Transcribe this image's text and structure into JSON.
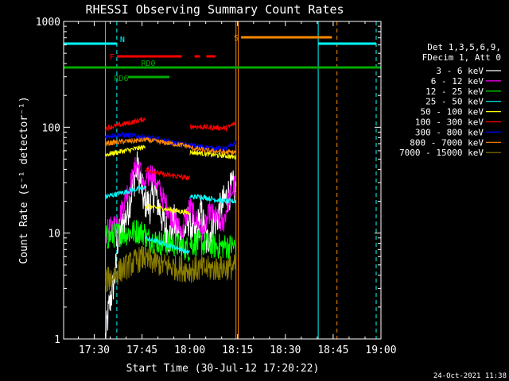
{
  "chart_data": {
    "type": "line",
    "title": "RHESSI Observing Summary Count Rates",
    "xlabel": "Start Time (30-Jul-12 17:20:22)",
    "ylabel": "Count Rate (s⁻¹ detector⁻¹)",
    "yscale": "log",
    "ylim": [
      1,
      1000
    ],
    "xlim_minutes": [
      1040.4,
      1140
    ],
    "x_ticks": [
      {
        "label": "17:30",
        "minute": 1050
      },
      {
        "label": "17:45",
        "minute": 1065
      },
      {
        "label": "18:00",
        "minute": 1080
      },
      {
        "label": "18:15",
        "minute": 1095
      },
      {
        "label": "18:30",
        "minute": 1110
      },
      {
        "label": "18:45",
        "minute": 1125
      },
      {
        "label": "19:00",
        "minute": 1140
      }
    ],
    "y_ticks": [
      {
        "label": "1",
        "value": 1
      },
      {
        "label": "10",
        "value": 10
      },
      {
        "label": "100",
        "value": 100
      },
      {
        "label": "1000",
        "value": 1000
      }
    ],
    "legend_header": [
      "Det 1,3,5,6,9,",
      "FDecim 1, Att 0"
    ],
    "legend_position": "top-right",
    "series": [
      {
        "name": "3 - 6 keV",
        "color": "#ffffff",
        "segments": [
          {
            "start": 1053.5,
            "end": 1057.0,
            "values": [
              1,
              2,
              3,
              5
            ]
          },
          {
            "start": 1057.0,
            "end": 1066.0,
            "values": [
              8,
              10,
              13,
              18,
              28,
              42,
              30,
              16
            ]
          },
          {
            "start": 1066.0,
            "end": 1078.0,
            "values": [
              20,
              18,
              25,
              17,
              12,
              9,
              13,
              10,
              8
            ]
          },
          {
            "start": 1078.0,
            "end": 1094.5,
            "values": [
              10,
              14,
              9,
              16,
              8,
              12,
              15,
              20,
              25,
              28
            ]
          }
        ]
      },
      {
        "name": "6 - 12 keV",
        "color": "#ff00ff",
        "segments": [
          {
            "start": 1053.5,
            "end": 1066.0,
            "values": [
              10,
              11,
              12,
              14,
              18,
              25,
              32,
              45,
              38,
              25
            ]
          },
          {
            "start": 1066.0,
            "end": 1078.0,
            "values": [
              30,
              38,
              28,
              20,
              15,
              12,
              10
            ]
          },
          {
            "start": 1078.0,
            "end": 1094.5,
            "values": [
              12,
              18,
              13,
              10,
              16,
              14,
              12,
              22,
              30
            ]
          }
        ]
      },
      {
        "name": "12 - 25 keV",
        "color": "#00ff00",
        "segments": [
          {
            "start": 1053.5,
            "end": 1066.0,
            "values": [
              9,
              9.5,
              10,
              10,
              10.5,
              10
            ]
          },
          {
            "start": 1066.0,
            "end": 1080.0,
            "values": [
              9,
              8.5,
              8,
              8,
              7.5,
              7
            ]
          },
          {
            "start": 1080.0,
            "end": 1094.5,
            "values": [
              8,
              8,
              7.5,
              7.5,
              7.5
            ]
          }
        ]
      },
      {
        "name": "25 - 50 keV",
        "color": "#00ffff",
        "segments": [
          {
            "start": 1053.5,
            "end": 1066.0,
            "values": [
              22,
              23,
              24,
              25,
              26,
              27
            ]
          },
          {
            "start": 1066.0,
            "end": 1080.0,
            "values": [
              9,
              8.5,
              8,
              7.5,
              7,
              6.5
            ]
          },
          {
            "start": 1080.0,
            "end": 1094.5,
            "values": [
              22,
              22,
              21,
              20,
              20
            ]
          }
        ]
      },
      {
        "name": "50 - 100 keV",
        "color": "#ffff00",
        "segments": [
          {
            "start": 1053.5,
            "end": 1066.0,
            "values": [
              55,
              57,
              59,
              61,
              63,
              65
            ]
          },
          {
            "start": 1066.0,
            "end": 1080.0,
            "values": [
              18,
              17.5,
              17,
              16.5,
              16,
              15.5
            ]
          },
          {
            "start": 1080.0,
            "end": 1094.5,
            "values": [
              58,
              57,
              55,
              54,
              52
            ]
          }
        ]
      },
      {
        "name": "100 - 300 keV",
        "color": "#ff0000",
        "segments": [
          {
            "start": 1053.5,
            "end": 1066.0,
            "values": [
              98,
              102,
              106,
              110,
              115,
              120
            ]
          },
          {
            "start": 1066.0,
            "end": 1080.0,
            "values": [
              40,
              38,
              36,
              35,
              34,
              33
            ]
          },
          {
            "start": 1080.0,
            "end": 1094.5,
            "values": [
              102,
              101,
              100,
              99,
              98,
              110
            ]
          }
        ]
      },
      {
        "name": "300 - 800 keV",
        "color": "#0000ff",
        "segments": [
          {
            "start": 1053.5,
            "end": 1066.0,
            "values": [
              82,
              84,
              85,
              84,
              83,
              82
            ]
          },
          {
            "start": 1066.0,
            "end": 1080.0,
            "values": [
              80,
              78,
              75,
              72,
              69,
              67
            ]
          },
          {
            "start": 1080.0,
            "end": 1094.5,
            "values": [
              68,
              66,
              64,
              63,
              63,
              72
            ]
          }
        ]
      },
      {
        "name": "800 - 7000 keV",
        "color": "#ff8800",
        "segments": [
          {
            "start": 1053.5,
            "end": 1066.0,
            "values": [
              70,
              72,
              73,
              74,
              75,
              76
            ]
          },
          {
            "start": 1066.0,
            "end": 1080.0,
            "values": [
              76,
              74,
              72,
              70,
              68,
              66
            ]
          },
          {
            "start": 1080.0,
            "end": 1094.5,
            "values": [
              64,
              62,
              60,
              59,
              58,
              58
            ]
          }
        ]
      },
      {
        "name": "7000 - 15000 keV",
        "color": "#8b7d00",
        "segments": [
          {
            "start": 1053.5,
            "end": 1066.0,
            "values": [
              3.5,
              4,
              4.5,
              5,
              5.5,
              6
            ]
          },
          {
            "start": 1066.0,
            "end": 1080.0,
            "values": [
              5.5,
              5.3,
              5.0,
              4.8,
              4.6,
              4.5
            ]
          },
          {
            "start": 1080.0,
            "end": 1094.5,
            "values": [
              4.5,
              4.6,
              4.6,
              4.7,
              4.8
            ]
          }
        ]
      }
    ],
    "flag_bars": [
      {
        "label": "N",
        "color": "#00ffff",
        "level": 0.07,
        "ranges": [
          [
            1040.4,
            1057.1
          ],
          [
            1120.3,
            1138.5
          ]
        ]
      },
      {
        "label": "S",
        "color": "#ff8800",
        "level": 0.05,
        "ranges": [
          [
            1096.1,
            1124.6
          ]
        ]
      },
      {
        "label": "F",
        "color": "#ff0000",
        "level": 0.11,
        "ranges": [
          [
            1057.1,
            1077.5
          ],
          [
            1081.5,
            1083.2
          ],
          [
            1085.2,
            1088.1
          ]
        ]
      },
      {
        "label": "RD0",
        "color": "#00aa00",
        "level": 0.145,
        "ranges": [
          [
            1040.4,
            1140.0
          ]
        ]
      },
      {
        "label": "RD6",
        "color": "#00aa00",
        "level": 0.175,
        "ranges": [
          [
            1060.6,
            1073.6
          ]
        ]
      }
    ],
    "vertical_markers": [
      {
        "minute": 1040.4,
        "color": "#00ffff",
        "style": "solid"
      },
      {
        "minute": 1057.1,
        "color": "#00ffff",
        "style": "dashed"
      },
      {
        "minute": 1094.5,
        "color": "#ff8800",
        "style": "solid"
      },
      {
        "minute": 1095.2,
        "color": "#ff8800",
        "style": "solid"
      },
      {
        "minute": 1120.3,
        "color": "#00ffff",
        "style": "solid"
      },
      {
        "minute": 1126.2,
        "color": "#ff8800",
        "style": "dashed"
      },
      {
        "minute": 1138.5,
        "color": "#00ffff",
        "style": "dashed"
      },
      {
        "minute": 1053.5,
        "color": "#ff8800",
        "style": "solid"
      }
    ],
    "timestamp": "24-Oct-2021 11:38"
  }
}
